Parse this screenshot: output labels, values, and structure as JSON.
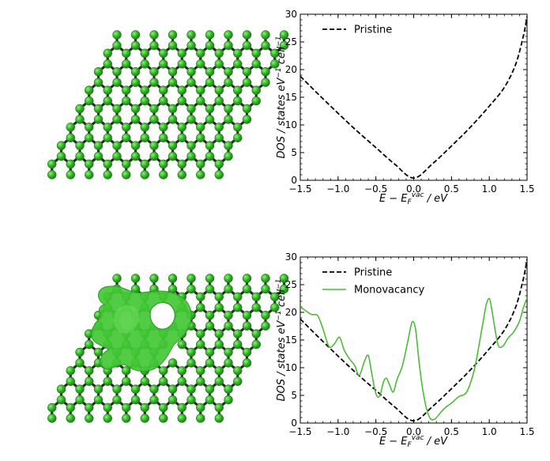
{
  "colors": {
    "pristine": "#000000",
    "monovacancy": "#4cbb38",
    "atom": "#2fb024",
    "atom_highlight": "#7be06d",
    "bond": "#2a2a2a",
    "isosurface": "#43c735"
  },
  "chart_data": [
    {
      "type": "line",
      "title": "",
      "xlabel": "E − E_F^vac / eV",
      "ylabel": "DOS / states eV⁻¹ cell⁻¹",
      "xlim": [
        -1.5,
        1.5
      ],
      "ylim": [
        0,
        30
      ],
      "xticks": [
        "−1.5",
        "−1.0",
        "−0.5",
        "0.0",
        "0.5",
        "1.0",
        "1.5"
      ],
      "yticks": [
        "0",
        "5",
        "10",
        "15",
        "20",
        "25",
        "30"
      ],
      "grid": false,
      "legend_position": "top-left",
      "series": [
        {
          "name": "Pristine",
          "style": "dashed",
          "x": [
            -1.5,
            -1.25,
            -1.0,
            -0.75,
            -0.5,
            -0.25,
            0.0,
            0.25,
            0.5,
            0.75,
            1.0,
            1.2,
            1.35,
            1.45,
            1.5
          ],
          "y": [
            18.8,
            15.4,
            12.1,
            8.9,
            5.9,
            2.9,
            0.4,
            3.0,
            6.2,
            9.6,
            13.4,
            16.8,
            21.0,
            26.0,
            29.6
          ]
        }
      ]
    },
    {
      "type": "line",
      "title": "",
      "xlabel": "E − E_F^vac / eV",
      "ylabel": "DOS / states eV⁻¹ cell⁻¹",
      "xlim": [
        -1.5,
        1.5
      ],
      "ylim": [
        0,
        30
      ],
      "xticks": [
        "−1.5",
        "−1.0",
        "−0.5",
        "0.0",
        "0.5",
        "1.0",
        "1.5"
      ],
      "yticks": [
        "0",
        "5",
        "10",
        "15",
        "20",
        "25",
        "30"
      ],
      "grid": false,
      "legend_position": "top-left",
      "series": [
        {
          "name": "Pristine",
          "style": "dashed",
          "x": [
            -1.5,
            -1.25,
            -1.0,
            -0.75,
            -0.5,
            -0.25,
            0.0,
            0.25,
            0.5,
            0.75,
            1.0,
            1.2,
            1.35,
            1.45,
            1.5
          ],
          "y": [
            18.8,
            15.4,
            12.1,
            8.9,
            5.9,
            2.9,
            0.4,
            3.0,
            6.2,
            9.6,
            13.4,
            16.8,
            21.0,
            26.0,
            29.6
          ]
        },
        {
          "name": "Monovacancy",
          "style": "solid",
          "x": [
            -1.5,
            -1.42,
            -1.35,
            -1.27,
            -1.2,
            -1.12,
            -1.05,
            -0.98,
            -0.92,
            -0.85,
            -0.78,
            -0.72,
            -0.65,
            -0.6,
            -0.56,
            -0.5,
            -0.45,
            -0.4,
            -0.36,
            -0.32,
            -0.27,
            -0.22,
            -0.15,
            -0.08,
            -0.03,
            0.0,
            0.03,
            0.07,
            0.12,
            0.17,
            0.22,
            0.28,
            0.35,
            0.42,
            0.5,
            0.6,
            0.7,
            0.8,
            0.87,
            0.92,
            0.96,
            1.0,
            1.03,
            1.07,
            1.12,
            1.18,
            1.25,
            1.32,
            1.4,
            1.45,
            1.5
          ],
          "y": [
            21.0,
            20.2,
            19.6,
            19.4,
            17.0,
            13.8,
            14.3,
            15.5,
            13.2,
            11.6,
            10.4,
            8.6,
            11.2,
            12.2,
            9.4,
            5.3,
            4.9,
            7.4,
            8.1,
            6.9,
            5.6,
            7.9,
            10.3,
            14.6,
            17.9,
            18.2,
            16.4,
            11.2,
            6.0,
            2.6,
            0.8,
            0.7,
            1.8,
            2.8,
            3.6,
            4.8,
            5.6,
            9.5,
            14.5,
            18.4,
            21.4,
            22.5,
            20.8,
            17.4,
            14.0,
            13.9,
            15.4,
            16.4,
            18.4,
            20.8,
            22.6
          ]
        }
      ]
    }
  ],
  "lattice_panels": [
    {
      "id": "pristine-lattice",
      "has_vacancy": false
    },
    {
      "id": "vacancy-lattice",
      "has_vacancy": true
    }
  ]
}
